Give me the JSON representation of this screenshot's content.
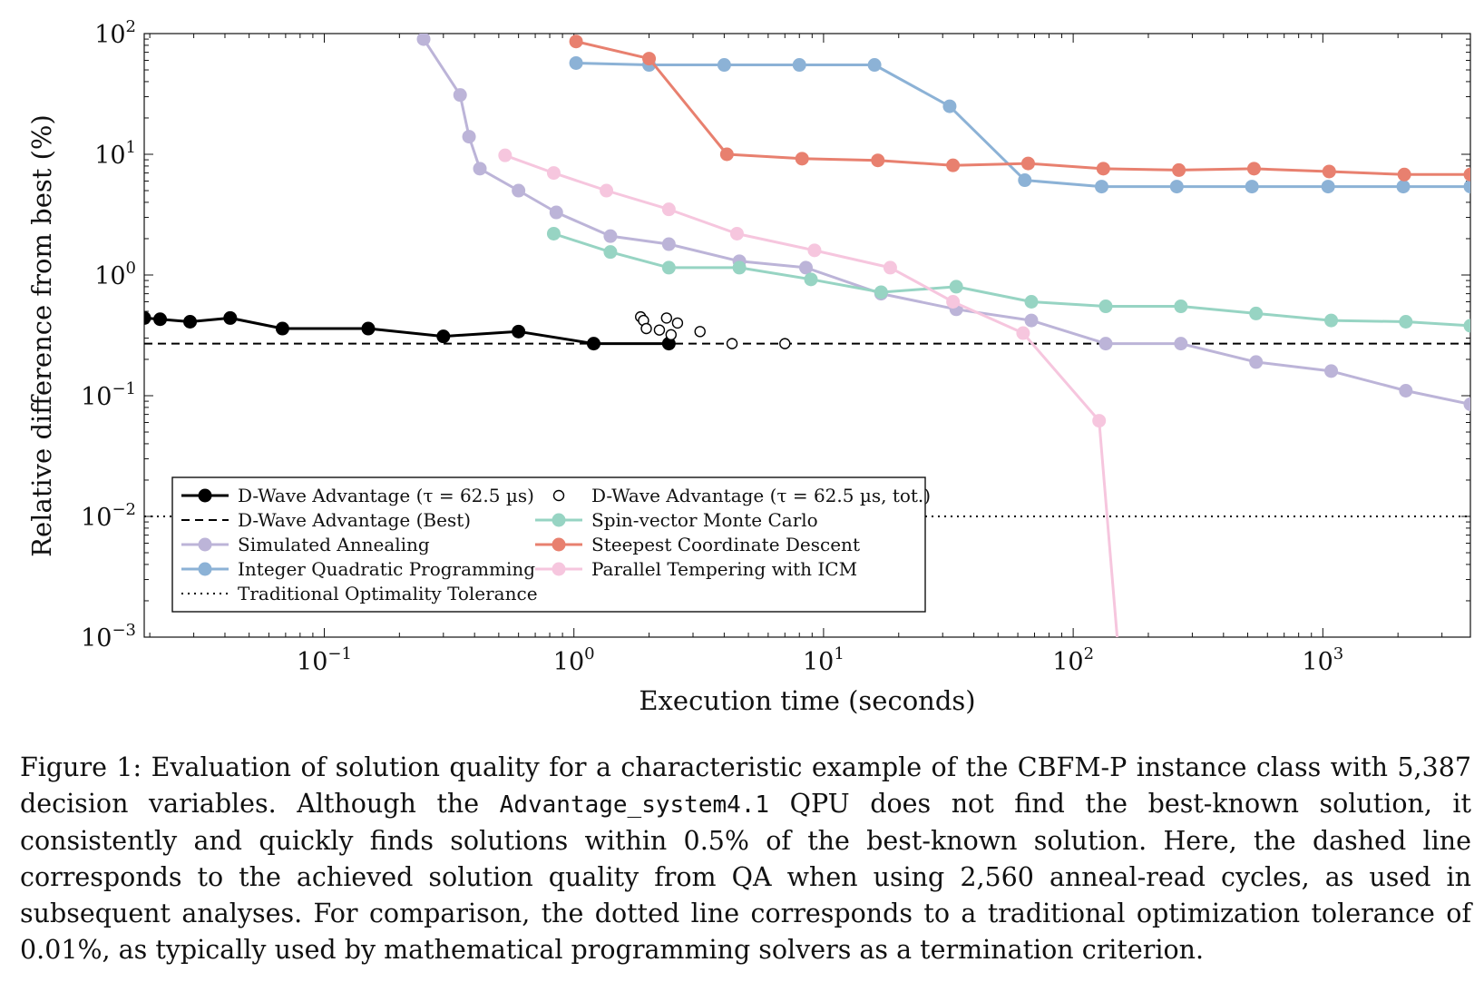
{
  "chart_data": {
    "type": "line",
    "xlabel": "Execution time (seconds)",
    "ylabel": "Relative difference from best (%)",
    "xscale": "log",
    "yscale": "log",
    "xlim": [
      0.019,
      3900
    ],
    "ylim": [
      0.001,
      100
    ],
    "xticks": [
      0.1,
      1,
      10,
      100,
      1000
    ],
    "xtick_labels": [
      "10^-1",
      "10^0",
      "10^1",
      "10^2",
      "10^3"
    ],
    "yticks": [
      0.001,
      0.01,
      0.1,
      1,
      10,
      100
    ],
    "ytick_labels": [
      "10^-3",
      "10^-2",
      "10^-1",
      "10^0",
      "10^1",
      "10^2"
    ],
    "grid": false,
    "legend_position": "bottom-left",
    "series": [
      {
        "name": "D-Wave Advantage (τ = 62.5 µs)",
        "style": "solid-marker",
        "color": "#000000",
        "x": [
          0.019,
          0.022,
          0.029,
          0.042,
          0.068,
          0.15,
          0.3,
          0.6,
          1.2,
          2.4
        ],
        "y": [
          0.44,
          0.43,
          0.41,
          0.44,
          0.36,
          0.36,
          0.31,
          0.34,
          0.27,
          0.27
        ]
      },
      {
        "name": "D-Wave Advantage (Best)",
        "style": "dashed",
        "color": "#000000",
        "x": [
          0.019,
          3900
        ],
        "y": [
          0.27,
          0.27
        ]
      },
      {
        "name": "Simulated Annealing",
        "style": "solid-marker",
        "color": "#bcb4d8",
        "x": [
          0.25,
          0.35,
          0.38,
          0.42,
          0.6,
          0.85,
          1.4,
          2.4,
          4.6,
          8.5,
          17,
          34,
          68,
          135,
          270,
          540,
          1080,
          2150,
          3900
        ],
        "y": [
          90,
          31,
          14,
          7.6,
          5,
          3.3,
          2.1,
          1.8,
          1.3,
          1.15,
          0.7,
          0.52,
          0.42,
          0.27,
          0.27,
          0.19,
          0.16,
          0.11,
          0.085
        ]
      },
      {
        "name": "Integer Quadratic Programming",
        "style": "solid-marker",
        "color": "#8cb2d6",
        "x": [
          1.02,
          2.0,
          4.0,
          8.0,
          16,
          32,
          64,
          130,
          260,
          520,
          1050,
          2100,
          3900
        ],
        "y": [
          57,
          55,
          55,
          55,
          55,
          25,
          6.1,
          5.4,
          5.4,
          5.4,
          5.4,
          5.4,
          5.4
        ]
      },
      {
        "name": "Traditional Optimality Tolerance",
        "style": "dotted",
        "color": "#000000",
        "x": [
          0.019,
          3900
        ],
        "y": [
          0.01,
          0.01
        ]
      },
      {
        "name": "D-Wave Advantage (τ = 62.5 µs, tot.)",
        "style": "open-marker",
        "color": "#000000",
        "x": [
          1.85,
          1.9,
          1.95,
          2.2,
          2.35,
          2.45,
          2.6,
          3.2,
          4.3,
          7.0
        ],
        "y": [
          0.45,
          0.42,
          0.36,
          0.35,
          0.44,
          0.32,
          0.4,
          0.34,
          0.27,
          0.27
        ]
      },
      {
        "name": "Spin-vector Monte Carlo",
        "style": "solid-marker",
        "color": "#97d4c3",
        "x": [
          0.83,
          1.4,
          2.4,
          4.6,
          8.9,
          17,
          34,
          68,
          135,
          270,
          540,
          1080,
          2150,
          3900
        ],
        "y": [
          2.2,
          1.55,
          1.15,
          1.15,
          0.92,
          0.72,
          0.8,
          0.6,
          0.55,
          0.55,
          0.48,
          0.42,
          0.41,
          0.38
        ]
      },
      {
        "name": "Steepest Coordinate Descent",
        "style": "solid-marker",
        "color": "#e8806f",
        "x": [
          1.02,
          2.0,
          4.1,
          8.2,
          16.5,
          33,
          66,
          132,
          265,
          530,
          1060,
          2120,
          3900
        ],
        "y": [
          86,
          62,
          10,
          9.2,
          8.9,
          8.1,
          8.4,
          7.6,
          7.4,
          7.6,
          7.2,
          6.8,
          6.8
        ]
      },
      {
        "name": "Parallel Tempering with ICM",
        "style": "solid-marker",
        "color": "#f6c6de",
        "x": [
          0.53,
          0.83,
          1.35,
          2.4,
          4.5,
          9.2,
          18.5,
          33,
          63,
          127,
          150
        ],
        "y": [
          9.8,
          7,
          5,
          3.5,
          2.2,
          1.6,
          1.15,
          0.6,
          0.33,
          0.062,
          0.001
        ],
        "marker_count": 10
      }
    ]
  },
  "caption": {
    "part1": "Figure 1:  Evaluation of solution quality for a characteristic example of the CBFM-P instance class with 5,387 decision variables.  Although the ",
    "code": "Advantage_system4.1",
    "part2": " QPU does not find the best-known solution, it consistently and quickly finds solutions within 0.5% of the best-known solution.  Here, the dashed line corresponds to the achieved solution quality from QA when using 2,560 anneal-read cycles, as used in subsequent analyses. For comparison, the dotted line corresponds to a traditional optimization tolerance of 0.01%, as typically used by mathematical programming solvers as a termination criterion."
  }
}
